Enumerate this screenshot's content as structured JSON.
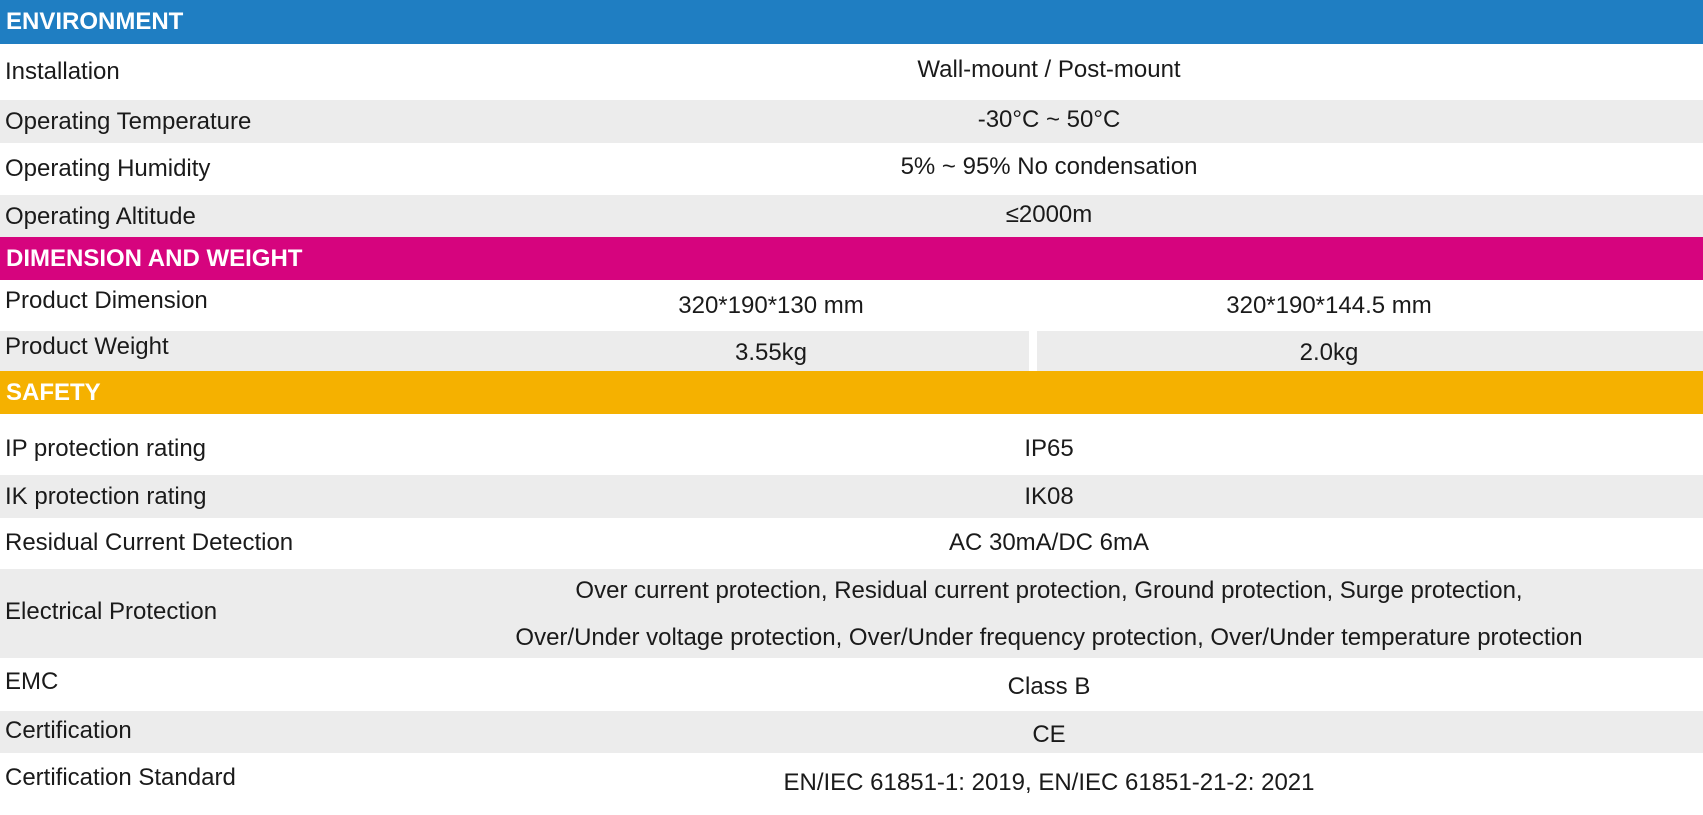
{
  "sections": {
    "environment": {
      "title": "ENVIRONMENT",
      "rows": [
        {
          "label": "Installation",
          "value": "Wall-mount / Post-mount"
        },
        {
          "label": "Operating Temperature",
          "value": "-30°C ~ 50°C"
        },
        {
          "label": "Operating Humidity",
          "value": "5% ~ 95% No condensation"
        },
        {
          "label": "Operating Altitude",
          "value": "≤2000m"
        }
      ]
    },
    "dimension": {
      "title": "DIMENSION AND WEIGHT",
      "rows": [
        {
          "label": "Product Dimension",
          "value_a": "320*190*130 mm",
          "value_b": "320*190*144.5 mm"
        },
        {
          "label": "Product Weight",
          "value_a": "3.55kg",
          "value_b": "2.0kg"
        }
      ]
    },
    "safety": {
      "title": "SAFETY",
      "rows": [
        {
          "label": "IP protection rating",
          "value": "IP65"
        },
        {
          "label": "IK protection rating",
          "value": "IK08"
        },
        {
          "label": "Residual Current Detection",
          "value": "AC 30mA/DC 6mA"
        },
        {
          "label": "Electrical Protection",
          "value_line1": "Over current protection, Residual current protection, Ground protection, Surge protection,",
          "value_line2": "Over/Under voltage protection, Over/Under frequency protection, Over/Under temperature protection"
        },
        {
          "label": "EMC",
          "value": "Class B"
        },
        {
          "label": "Certification",
          "value": "CE"
        },
        {
          "label": "Certification Standard",
          "value": "EN/IEC 61851-1: 2019, EN/IEC 61851-21-2: 2021"
        }
      ]
    }
  },
  "colors": {
    "environment_header": "#1f7ec2",
    "dimension_header": "#d6047e",
    "safety_header": "#f5b100",
    "row_grey": "#ececec"
  }
}
